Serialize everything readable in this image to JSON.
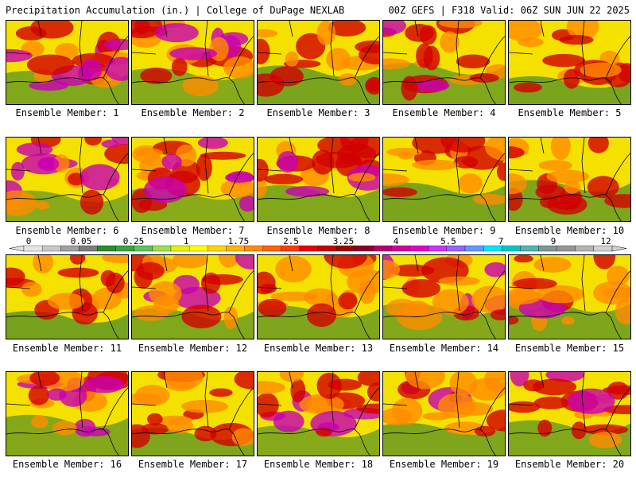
{
  "header": {
    "left": "Precipitation Accumulation (in.) | College of DuPage NEXLAB",
    "right": "00Z GEFS | F318 Valid: 06Z SUN JUN 22 2025"
  },
  "caption_prefix": "Ensemble Member: ",
  "members": [
    {
      "label": "Ensemble Member: 1",
      "level": 0.55
    },
    {
      "label": "Ensemble Member: 2",
      "level": 0.65
    },
    {
      "label": "Ensemble Member: 3",
      "level": 0.45
    },
    {
      "label": "Ensemble Member: 4",
      "level": 0.55
    },
    {
      "label": "Ensemble Member: 5",
      "level": 0.45
    },
    {
      "label": "Ensemble Member: 6",
      "level": 0.7
    },
    {
      "label": "Ensemble Member: 7",
      "level": 0.7
    },
    {
      "label": "Ensemble Member: 8",
      "level": 0.55
    },
    {
      "label": "Ensemble Member: 9",
      "level": 0.45
    },
    {
      "label": "Ensemble Member: 10",
      "level": 0.5
    },
    {
      "label": "Ensemble Member: 11",
      "level": 0.4
    },
    {
      "label": "Ensemble Member: 12",
      "level": 0.55
    },
    {
      "label": "Ensemble Member: 13",
      "level": 0.5
    },
    {
      "label": "Ensemble Member: 14",
      "level": 0.6
    },
    {
      "label": "Ensemble Member: 15",
      "level": 0.5
    },
    {
      "label": "Ensemble Member: 16",
      "level": 0.6
    },
    {
      "label": "Ensemble Member: 17",
      "level": 0.5
    },
    {
      "label": "Ensemble Member: 18",
      "level": 0.65
    },
    {
      "label": "Ensemble Member: 19",
      "level": 0.5
    },
    {
      "label": "Ensemble Member: 20",
      "level": 0.55
    }
  ],
  "colorbar": {
    "tick_labels": [
      "0",
      "0.05",
      "0.25",
      "1",
      "1.75",
      "2.5",
      "3.25",
      "4",
      "5.5",
      "7",
      "9",
      "12"
    ],
    "colors": [
      "#e6e6e6",
      "#c8c8c8",
      "#a0a0a0",
      "#7d7d7d",
      "#2e8b2e",
      "#3aa23a",
      "#5cc35c",
      "#9be04a",
      "#e6f000",
      "#ffff00",
      "#ffd700",
      "#ffb400",
      "#ff8c00",
      "#ff6400",
      "#ff3c00",
      "#e60000",
      "#c80000",
      "#a00000",
      "#8b0030",
      "#b4006e",
      "#d2009b",
      "#e600c8",
      "#c832ff",
      "#9664ff",
      "#6496ff",
      "#00e6ff",
      "#00c8c8",
      "#50b4b4",
      "#7d9696",
      "#969696",
      "#b4b4b4",
      "#d2d2d2"
    ]
  },
  "palette": {
    "water_low": "#2e7d2e",
    "mid": "#f5e100",
    "high": "#ff8c00",
    "very_high": "#d20000",
    "extreme": "#c800b4",
    "top": "#00e6ff"
  }
}
